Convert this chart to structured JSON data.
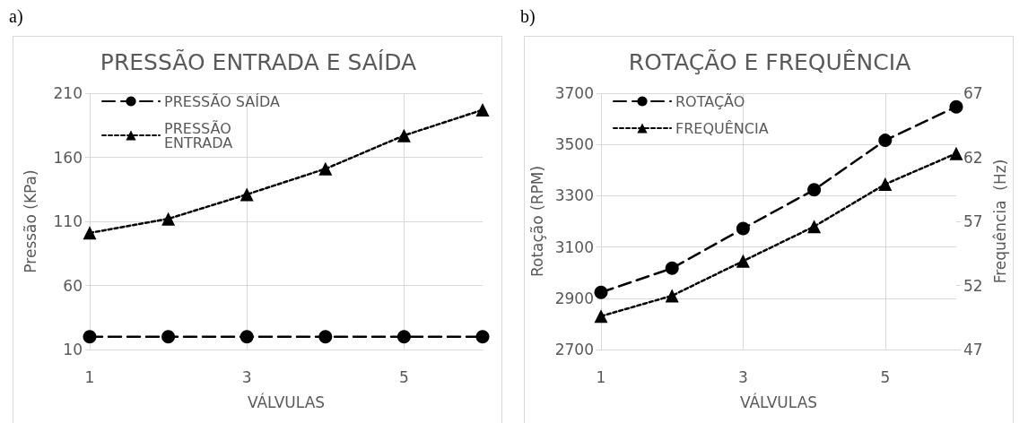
{
  "chart_data": [
    {
      "type": "line",
      "title": "PRESSÃO ENTRADA E SAÍDA",
      "xlabel": "VÁLVULAS",
      "ylabel": "Pressão (KPa)",
      "annotations": [
        "a)"
      ],
      "x": [
        1,
        2,
        3,
        4,
        5,
        6
      ],
      "xlim": [
        1,
        6
      ],
      "xticks": [
        1,
        3,
        5
      ],
      "ylim": [
        10,
        210
      ],
      "yticks": [
        10,
        60,
        110,
        160,
        210
      ],
      "grid": true,
      "legend": "top left",
      "series": [
        {
          "name": "PRESSÃO SAÍDA",
          "color": "#000000",
          "marker": "circle",
          "line_style": "dashed",
          "values": [
            20,
            20,
            20,
            20,
            20,
            20
          ]
        },
        {
          "name": "PRESSÃO ENTRADA",
          "color": "#000000",
          "marker": "triangle",
          "line_style": "dotted",
          "values": [
            101,
            112,
            131,
            151,
            177,
            197
          ]
        }
      ]
    },
    {
      "type": "line",
      "title": "ROTAÇÃO E FREQUÊNCIA",
      "xlabel": "VÁLVULAS",
      "ylabel": "Rotação (RPM)",
      "y2label": "Frequência  (Hz)",
      "annotations": [
        "b)"
      ],
      "x": [
        1,
        2,
        3,
        4,
        5,
        6
      ],
      "xlim": [
        1,
        6
      ],
      "xticks": [
        1,
        3,
        5
      ],
      "ylim": [
        2700,
        3700
      ],
      "yticks": [
        2700,
        2900,
        3100,
        3300,
        3500,
        3700
      ],
      "y2lim": [
        47,
        67
      ],
      "y2ticks": [
        47,
        52,
        57,
        62,
        67
      ],
      "grid": true,
      "legend": "top left",
      "series": [
        {
          "name": "ROTAÇÃO",
          "color": "#000000",
          "marker": "circle",
          "line_style": "dashed",
          "values": [
            2923,
            3017,
            3172,
            3323,
            3516,
            3647
          ]
        },
        {
          "name": "FREQUÊNCIA",
          "color": "#000000",
          "marker": "triangle",
          "line_style": "dotted",
          "axis": "y2",
          "values": [
            49.6,
            51.2,
            53.9,
            56.6,
            59.9,
            62.3
          ]
        }
      ]
    }
  ]
}
